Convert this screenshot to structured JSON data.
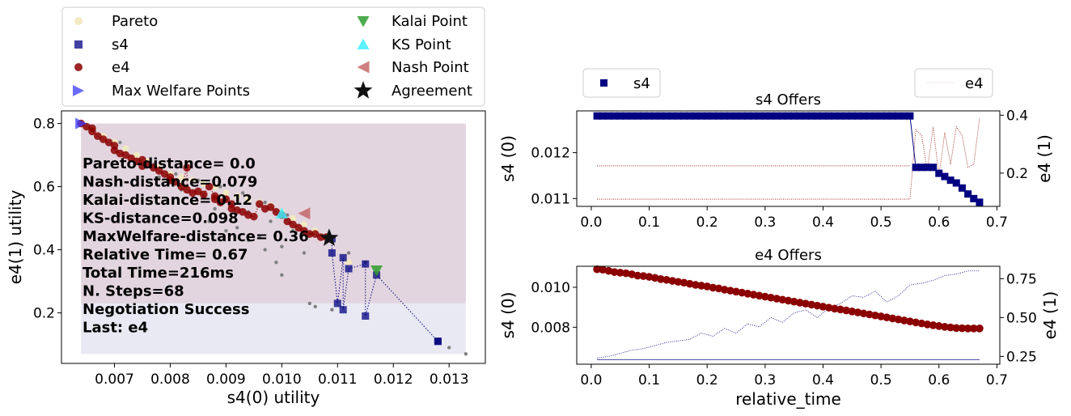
{
  "chart_data": [
    {
      "type": "scatter",
      "xlabel": "s4(0) utility",
      "ylabel": "e4(1) utility",
      "xticks": [
        "0.007",
        "0.008",
        "0.009",
        "0.010",
        "0.011",
        "0.012",
        "0.013"
      ],
      "yticks": [
        "0.2",
        "0.4",
        "0.6",
        "0.8"
      ],
      "xlim": [
        0.00605,
        0.01365
      ],
      "ylim": [
        0.04,
        0.84
      ],
      "legend_location": "above",
      "legend": [
        "Pareto",
        "s4",
        "e4",
        "Max Welfare Points",
        "Kalai Point",
        "KS Point",
        "Nash Point",
        "Agreement"
      ],
      "colors": {
        "pareto": "#f3e9c0",
        "s4": "#000080",
        "e4": "#8b0000",
        "welfare": "#3a3aff",
        "kalai": "#2e9e2e",
        "ks": "#3ff0ff",
        "nash": "#c06060",
        "agreement": "#111111",
        "outcomes": "#808080",
        "region_top": "#e3d5df",
        "region_bottom": "#e9e9f3"
      },
      "stats": [
        "Pareto-distance=  0.0",
        "Nash-distance=0.079",
        "Kalai-distance= 0.12",
        "KS-distance=0.098",
        "MaxWelfare-distance= 0.36",
        "Relative Time= 0.67",
        "Total Time=216ms",
        "N. Steps=68",
        "Negotiation Success",
        "Last: e4"
      ],
      "regions": {
        "top": {
          "x": [
            0.0064,
            0.0133
          ],
          "y": [
            0.23,
            0.8
          ]
        },
        "bottom": {
          "x": [
            0.0064,
            0.0133
          ],
          "y": [
            0.07,
            0.23
          ]
        }
      },
      "outcomes": [
        [
          0.0066,
          0.78
        ],
        [
          0.0071,
          0.74
        ],
        [
          0.0077,
          0.67
        ],
        [
          0.0081,
          0.64
        ],
        [
          0.0085,
          0.62
        ],
        [
          0.0089,
          0.6
        ],
        [
          0.0093,
          0.58
        ],
        [
          0.0097,
          0.55
        ],
        [
          0.0101,
          0.51
        ],
        [
          0.0078,
          0.63
        ],
        [
          0.0082,
          0.59
        ],
        [
          0.0086,
          0.57
        ],
        [
          0.009,
          0.56
        ],
        [
          0.0094,
          0.52
        ],
        [
          0.0098,
          0.49
        ],
        [
          0.0102,
          0.46
        ],
        [
          0.0105,
          0.45
        ],
        [
          0.0092,
          0.47
        ],
        [
          0.0096,
          0.44
        ],
        [
          0.01,
          0.41
        ],
        [
          0.0104,
          0.39
        ],
        [
          0.0088,
          0.53
        ],
        [
          0.0087,
          0.49
        ],
        [
          0.009,
          0.46
        ],
        [
          0.0094,
          0.43
        ],
        [
          0.0097,
          0.4
        ],
        [
          0.0099,
          0.36
        ],
        [
          0.01,
          0.32
        ],
        [
          0.0105,
          0.23
        ],
        [
          0.0106,
          0.22
        ],
        [
          0.0109,
          0.21
        ],
        [
          0.0112,
          0.39
        ],
        [
          0.0115,
          0.36
        ],
        [
          0.0128,
          0.11
        ],
        [
          0.013,
          0.09
        ],
        [
          0.0133,
          0.07
        ]
      ],
      "pareto": [
        [
          0.0064,
          0.8
        ],
        [
          0.0066,
          0.78
        ],
        [
          0.0068,
          0.76
        ],
        [
          0.007,
          0.74
        ],
        [
          0.0072,
          0.72
        ],
        [
          0.0074,
          0.7
        ],
        [
          0.0076,
          0.68
        ],
        [
          0.0078,
          0.66
        ],
        [
          0.008,
          0.64
        ],
        [
          0.0082,
          0.63
        ],
        [
          0.0084,
          0.62
        ],
        [
          0.0086,
          0.61
        ],
        [
          0.0088,
          0.6
        ],
        [
          0.009,
          0.58
        ],
        [
          0.0092,
          0.57
        ],
        [
          0.0094,
          0.56
        ],
        [
          0.0096,
          0.55
        ],
        [
          0.0098,
          0.54
        ],
        [
          0.01,
          0.52
        ],
        [
          0.0102,
          0.5
        ],
        [
          0.0104,
          0.48
        ],
        [
          0.0106,
          0.46
        ],
        [
          0.0108,
          0.44
        ],
        [
          0.0112,
          0.36
        ],
        [
          0.0117,
          0.32
        ],
        [
          0.0128,
          0.11
        ]
      ],
      "s4_offers": [
        [
          0.0128,
          0.11
        ],
        [
          0.0128,
          0.11
        ],
        [
          0.0117,
          0.32
        ],
        [
          0.0115,
          0.19
        ],
        [
          0.0115,
          0.355
        ],
        [
          0.0112,
          0.34
        ],
        [
          0.0111,
          0.21
        ],
        [
          0.0111,
          0.375
        ],
        [
          0.011,
          0.23
        ],
        [
          0.0109,
          0.39
        ],
        [
          0.0109,
          0.435
        ]
      ],
      "e4_offers": [
        [
          0.0064,
          0.8
        ],
        [
          0.0065,
          0.79
        ],
        [
          0.0066,
          0.785
        ],
        [
          0.0066,
          0.775
        ],
        [
          0.0067,
          0.76
        ],
        [
          0.0068,
          0.75
        ],
        [
          0.0069,
          0.74
        ],
        [
          0.007,
          0.73
        ],
        [
          0.007,
          0.715
        ],
        [
          0.0071,
          0.705
        ],
        [
          0.0072,
          0.7
        ],
        [
          0.0073,
          0.69
        ],
        [
          0.0074,
          0.68
        ],
        [
          0.0075,
          0.685
        ],
        [
          0.0075,
          0.665
        ],
        [
          0.0076,
          0.67
        ],
        [
          0.0077,
          0.66
        ],
        [
          0.0078,
          0.65
        ],
        [
          0.0079,
          0.64
        ],
        [
          0.008,
          0.63
        ],
        [
          0.008,
          0.62
        ],
        [
          0.0081,
          0.615
        ],
        [
          0.0082,
          0.6
        ],
        [
          0.0083,
          0.66
        ],
        [
          0.0083,
          0.59
        ],
        [
          0.0084,
          0.58
        ],
        [
          0.0085,
          0.585
        ],
        [
          0.0086,
          0.575
        ],
        [
          0.0087,
          0.6
        ],
        [
          0.0088,
          0.57
        ],
        [
          0.0088,
          0.56
        ],
        [
          0.0089,
          0.55
        ],
        [
          0.009,
          0.56
        ],
        [
          0.0091,
          0.545
        ],
        [
          0.0091,
          0.53
        ],
        [
          0.0092,
          0.525
        ],
        [
          0.0093,
          0.52
        ],
        [
          0.0094,
          0.51
        ],
        [
          0.0095,
          0.505
        ],
        [
          0.0096,
          0.545
        ],
        [
          0.0097,
          0.53
        ],
        [
          0.0098,
          0.535
        ],
        [
          0.0099,
          0.52
        ],
        [
          0.01,
          0.51
        ],
        [
          0.0101,
          0.49
        ],
        [
          0.0102,
          0.48
        ],
        [
          0.0103,
          0.47
        ],
        [
          0.0104,
          0.46
        ],
        [
          0.0105,
          0.45
        ],
        [
          0.0106,
          0.45
        ],
        [
          0.0107,
          0.44
        ],
        [
          0.0108,
          0.44
        ]
      ],
      "welfare_points": [
        [
          0.0064,
          0.8
        ]
      ],
      "kalai_point": [
        0.0117,
        0.335
      ],
      "ks_point": [
        0.01,
        0.515
      ],
      "nash_point": [
        0.0104,
        0.515
      ],
      "agreement": [
        0.01085,
        0.437
      ]
    },
    {
      "type": "line",
      "title": "s4 Offers",
      "ylabel": "s4 (0)",
      "ylabel_right": "e4 (1)",
      "xlim": [
        -0.025,
        0.705
      ],
      "ylim": [
        0.01083,
        0.01291
      ],
      "ylim_right": [
        0.085,
        0.415
      ],
      "xticks": [
        "0.0",
        "0.1",
        "0.2",
        "0.3",
        "0.4",
        "0.5",
        "0.6",
        "0.7"
      ],
      "yticks": [
        "0.011",
        "0.012"
      ],
      "yticks_right": [
        "0.2",
        "0.4"
      ],
      "legend": [
        "s4",
        "e4"
      ],
      "s4_series": {
        "x": [
          0.01,
          0.02,
          0.03,
          0.04,
          0.05,
          0.06,
          0.07,
          0.08,
          0.09,
          0.1,
          0.11,
          0.12,
          0.13,
          0.14,
          0.15,
          0.16,
          0.17,
          0.18,
          0.19,
          0.2,
          0.21,
          0.22,
          0.23,
          0.24,
          0.25,
          0.26,
          0.27,
          0.28,
          0.29,
          0.3,
          0.31,
          0.32,
          0.33,
          0.34,
          0.35,
          0.36,
          0.37,
          0.38,
          0.39,
          0.4,
          0.41,
          0.42,
          0.43,
          0.44,
          0.45,
          0.46,
          0.47,
          0.48,
          0.49,
          0.5,
          0.51,
          0.52,
          0.53,
          0.54,
          0.55,
          0.56,
          0.57,
          0.58,
          0.59,
          0.6,
          0.61,
          0.62,
          0.63,
          0.64,
          0.65,
          0.66,
          0.67
        ],
        "values": [
          0.0128,
          0.0128,
          0.0128,
          0.0128,
          0.0128,
          0.0128,
          0.0128,
          0.0128,
          0.0128,
          0.0128,
          0.0128,
          0.0128,
          0.0128,
          0.0128,
          0.0128,
          0.0128,
          0.0128,
          0.0128,
          0.0128,
          0.0128,
          0.0128,
          0.0128,
          0.0128,
          0.0128,
          0.0128,
          0.0128,
          0.0128,
          0.0128,
          0.0128,
          0.0128,
          0.0128,
          0.0128,
          0.0128,
          0.0128,
          0.0128,
          0.0128,
          0.0128,
          0.0128,
          0.0128,
          0.0128,
          0.0128,
          0.0128,
          0.0128,
          0.0128,
          0.0128,
          0.0128,
          0.0128,
          0.0128,
          0.0128,
          0.0128,
          0.0128,
          0.0128,
          0.0128,
          0.0128,
          0.0128,
          0.01168,
          0.01168,
          0.01168,
          0.01168,
          0.01155,
          0.01148,
          0.0114,
          0.01134,
          0.01123,
          0.0111,
          0.011,
          0.01092
        ]
      },
      "e4_series": {
        "x": [
          0.01,
          0.55,
          0.56,
          0.57,
          0.58,
          0.59,
          0.6,
          0.61,
          0.62,
          0.63,
          0.64,
          0.65,
          0.66,
          0.67
        ],
        "values": [
          0.11,
          0.11,
          0.35,
          0.33,
          0.21,
          0.36,
          0.19,
          0.34,
          0.23,
          0.36,
          0.33,
          0.22,
          0.23,
          0.39
        ]
      },
      "e4_flat": {
        "x": [
          0.01,
          0.55
        ],
        "value": 0.225
      }
    },
    {
      "type": "line",
      "title": "e4 Offers",
      "xlabel": "relative_time",
      "ylabel": "s4 (0)",
      "ylabel_right": "e4 (1)",
      "xlim": [
        -0.025,
        0.705
      ],
      "ylim": [
        0.00615,
        0.01105
      ],
      "ylim_right": [
        0.2,
        0.83
      ],
      "xticks": [
        "0.0",
        "0.1",
        "0.2",
        "0.3",
        "0.4",
        "0.5",
        "0.6",
        "0.7"
      ],
      "yticks": [
        "0.008",
        "0.010"
      ],
      "yticks_right": [
        "0.25",
        "0.50",
        "0.75"
      ],
      "e4_series": {
        "x": [
          0.01,
          0.02,
          0.03,
          0.04,
          0.05,
          0.06,
          0.07,
          0.08,
          0.09,
          0.1,
          0.11,
          0.12,
          0.13,
          0.14,
          0.15,
          0.16,
          0.17,
          0.18,
          0.19,
          0.2,
          0.21,
          0.22,
          0.23,
          0.24,
          0.25,
          0.26,
          0.27,
          0.28,
          0.29,
          0.3,
          0.31,
          0.32,
          0.33,
          0.34,
          0.35,
          0.36,
          0.37,
          0.38,
          0.39,
          0.4,
          0.41,
          0.42,
          0.43,
          0.44,
          0.45,
          0.46,
          0.47,
          0.48,
          0.49,
          0.5,
          0.51,
          0.52,
          0.53,
          0.54,
          0.55,
          0.56,
          0.57,
          0.58,
          0.59,
          0.6,
          0.61,
          0.62,
          0.63,
          0.64,
          0.65,
          0.66,
          0.67
        ],
        "values": [
          0.0109,
          0.01088,
          0.01082,
          0.01076,
          0.01073,
          0.0107,
          0.01065,
          0.01058,
          0.01056,
          0.01052,
          0.01047,
          0.01041,
          0.01037,
          0.01032,
          0.01027,
          0.01023,
          0.01017,
          0.01012,
          0.01008,
          0.01004,
          0.00998,
          0.00994,
          0.00988,
          0.00983,
          0.00978,
          0.00973,
          0.00968,
          0.00963,
          0.00958,
          0.00953,
          0.00948,
          0.00943,
          0.00938,
          0.00933,
          0.00928,
          0.00923,
          0.00918,
          0.00913,
          0.00908,
          0.00903,
          0.00898,
          0.00893,
          0.00889,
          0.00884,
          0.00879,
          0.00874,
          0.00869,
          0.00864,
          0.00859,
          0.00854,
          0.00849,
          0.00844,
          0.00839,
          0.00834,
          0.00829,
          0.00824,
          0.00819,
          0.00814,
          0.0081,
          0.00806,
          0.00802,
          0.00799,
          0.00796,
          0.00795,
          0.00794,
          0.00794,
          0.00794
        ]
      },
      "s4_series": {
        "x": [
          0.01,
          0.03,
          0.05,
          0.07,
          0.09,
          0.11,
          0.13,
          0.15,
          0.17,
          0.19,
          0.21,
          0.23,
          0.25,
          0.27,
          0.29,
          0.31,
          0.33,
          0.35,
          0.37,
          0.39,
          0.41,
          0.43,
          0.45,
          0.47,
          0.49,
          0.51,
          0.53,
          0.55,
          0.57,
          0.59,
          0.61,
          0.63,
          0.65,
          0.67
        ],
        "values": [
          0.24,
          0.25,
          0.27,
          0.29,
          0.3,
          0.32,
          0.34,
          0.35,
          0.36,
          0.4,
          0.38,
          0.43,
          0.4,
          0.46,
          0.44,
          0.5,
          0.47,
          0.53,
          0.55,
          0.5,
          0.56,
          0.59,
          0.64,
          0.63,
          0.67,
          0.6,
          0.64,
          0.71,
          0.72,
          0.74,
          0.77,
          0.78,
          0.8,
          0.8
        ]
      },
      "s4_flat": {
        "x": [
          0.01,
          0.67
        ],
        "value": 0.23
      }
    }
  ]
}
